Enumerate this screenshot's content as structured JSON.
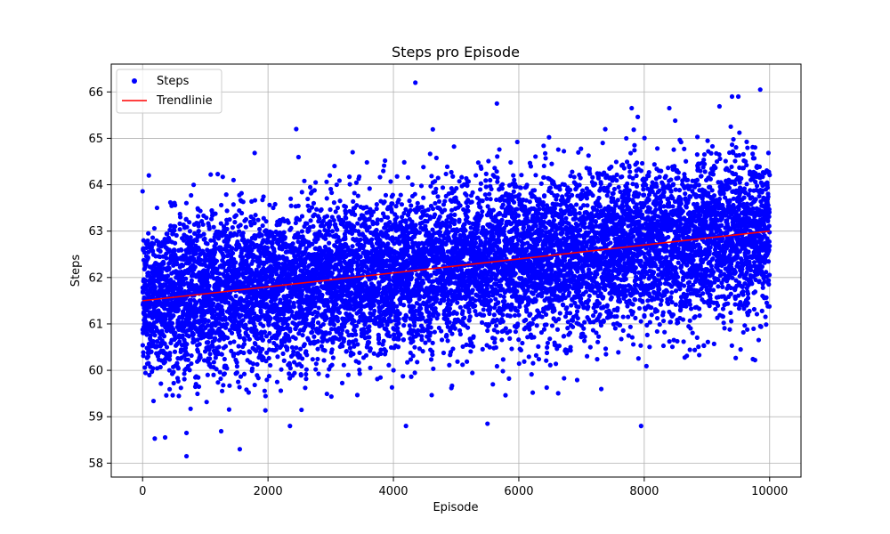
{
  "chart_data": {
    "type": "scatter",
    "title": "Steps pro Episode",
    "xlabel": "Episode",
    "ylabel": "Steps",
    "xlim": [
      -500,
      10500
    ],
    "ylim": [
      57.7,
      66.6
    ],
    "xticks": [
      0,
      2000,
      4000,
      6000,
      8000,
      10000
    ],
    "yticks": [
      58,
      59,
      60,
      61,
      62,
      63,
      64,
      65,
      66
    ],
    "grid": true,
    "legend_position": "top-left",
    "series": [
      {
        "name": "Steps",
        "kind": "scatter",
        "color": "#0000ff",
        "count": 10000,
        "x_range": [
          0,
          10000
        ],
        "trend_start": 61.5,
        "trend_end": 63.0,
        "spread_sd": 0.85,
        "outliers": [
          {
            "x": 700,
            "y": 58.15
          },
          {
            "x": 1550,
            "y": 58.3
          },
          {
            "x": 700,
            "y": 58.65
          },
          {
            "x": 2350,
            "y": 58.8
          },
          {
            "x": 4200,
            "y": 58.8
          },
          {
            "x": 5500,
            "y": 58.85
          },
          {
            "x": 7950,
            "y": 58.8
          },
          {
            "x": 4350,
            "y": 66.2
          },
          {
            "x": 9850,
            "y": 66.05
          },
          {
            "x": 9400,
            "y": 65.9
          },
          {
            "x": 9500,
            "y": 65.9
          },
          {
            "x": 5650,
            "y": 65.75
          },
          {
            "x": 7800,
            "y": 65.65
          },
          {
            "x": 8400,
            "y": 65.65
          },
          {
            "x": 100,
            "y": 64.2
          },
          {
            "x": 1450,
            "y": 64.1
          },
          {
            "x": 2450,
            "y": 65.2
          },
          {
            "x": 3350,
            "y": 64.7
          }
        ]
      },
      {
        "name": "Trendlinie",
        "kind": "line",
        "color": "#ff0000",
        "x": [
          0,
          10000
        ],
        "y": [
          61.5,
          63.0
        ]
      }
    ]
  }
}
